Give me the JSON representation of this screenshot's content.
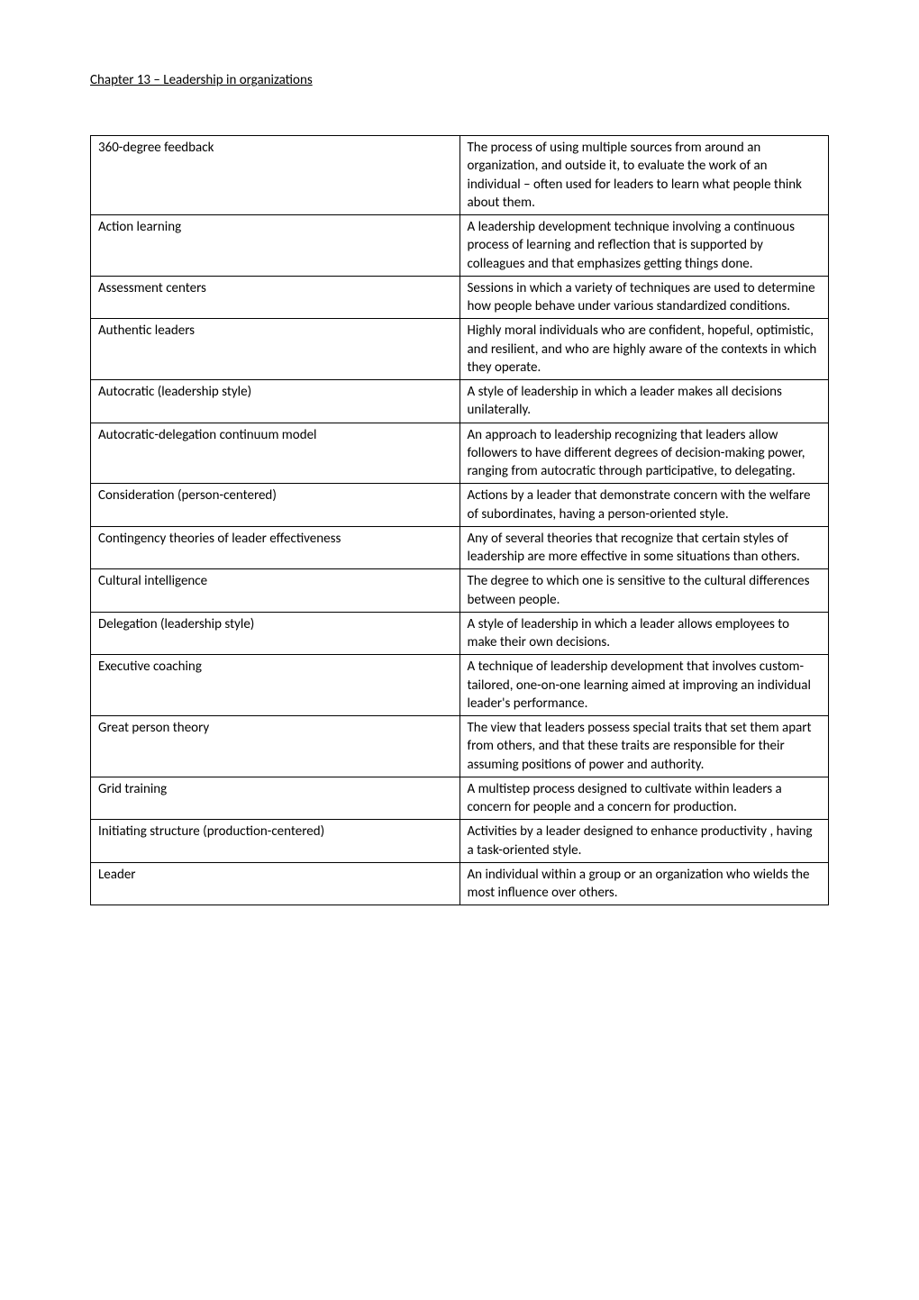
{
  "title": "Chapter 13 – Leadership in organizations",
  "colors": {
    "text": "#000000",
    "background": "#ffffff",
    "border": "#000000"
  },
  "fontsize_body": 15,
  "fontsize_title": 15,
  "table": {
    "columns": [
      "term",
      "definition"
    ],
    "col_widths_pct": [
      50,
      50
    ],
    "rows": [
      {
        "term": "360-degree feedback",
        "def": "The process of using multiple sources from around an organization, and outside it, to evaluate the work of an individual – often used for leaders to learn what people think about them."
      },
      {
        "term": "Action learning",
        "def": "A leadership development technique involving a continuous process of learning and reflection that is supported by colleagues and that emphasizes getting things done."
      },
      {
        "term": "Assessment centers",
        "def": "Sessions in which a variety of techniques are used to determine how people behave under various standardized conditions."
      },
      {
        "term": "Authentic leaders",
        "def": "Highly moral individuals who are confident, hopeful, optimistic, and resilient, and who are highly aware of the contexts in which they operate."
      },
      {
        "term": "Autocratic (leadership style)",
        "def": "A style of leadership in which a leader makes all decisions unilaterally."
      },
      {
        "term": "Autocratic-delegation continuum model",
        "def": "An approach to leadership recognizing that leaders allow followers to have different degrees of decision-making power, ranging from autocratic through participative, to delegating."
      },
      {
        "term": "Consideration (person-centered)",
        "def": "Actions by a leader that demonstrate concern with the welfare of subordinates, having a person-oriented style."
      },
      {
        "term": "Contingency theories of leader effectiveness",
        "def": "Any of several theories that recognize that certain styles of leadership are more effective in some situations than others."
      },
      {
        "term": "Cultural intelligence",
        "def": "The degree to which one is sensitive to the cultural differences between people."
      },
      {
        "term": "Delegation (leadership style)",
        "def": "A style of leadership in which a leader allows employees to make their own decisions."
      },
      {
        "term": "Executive coaching",
        "def": "A technique of leadership development that involves custom-tailored, one-on-one learning aimed at improving an individual leader's performance."
      },
      {
        "term": "Great person theory",
        "def": "The view that leaders possess special traits that set them apart from others, and that these traits are responsible for their assuming positions of power and authority."
      },
      {
        "term": "Grid training",
        "def": "A multistep process designed to cultivate within leaders a concern for people and a concern for production."
      },
      {
        "term": "Initiating structure (production-centered)",
        "def": "Activities by a leader designed to enhance productivity , having a task-oriented style."
      },
      {
        "term": "Leader",
        "def": "An individual within a group or an organization who wields the most influence over others."
      }
    ]
  }
}
